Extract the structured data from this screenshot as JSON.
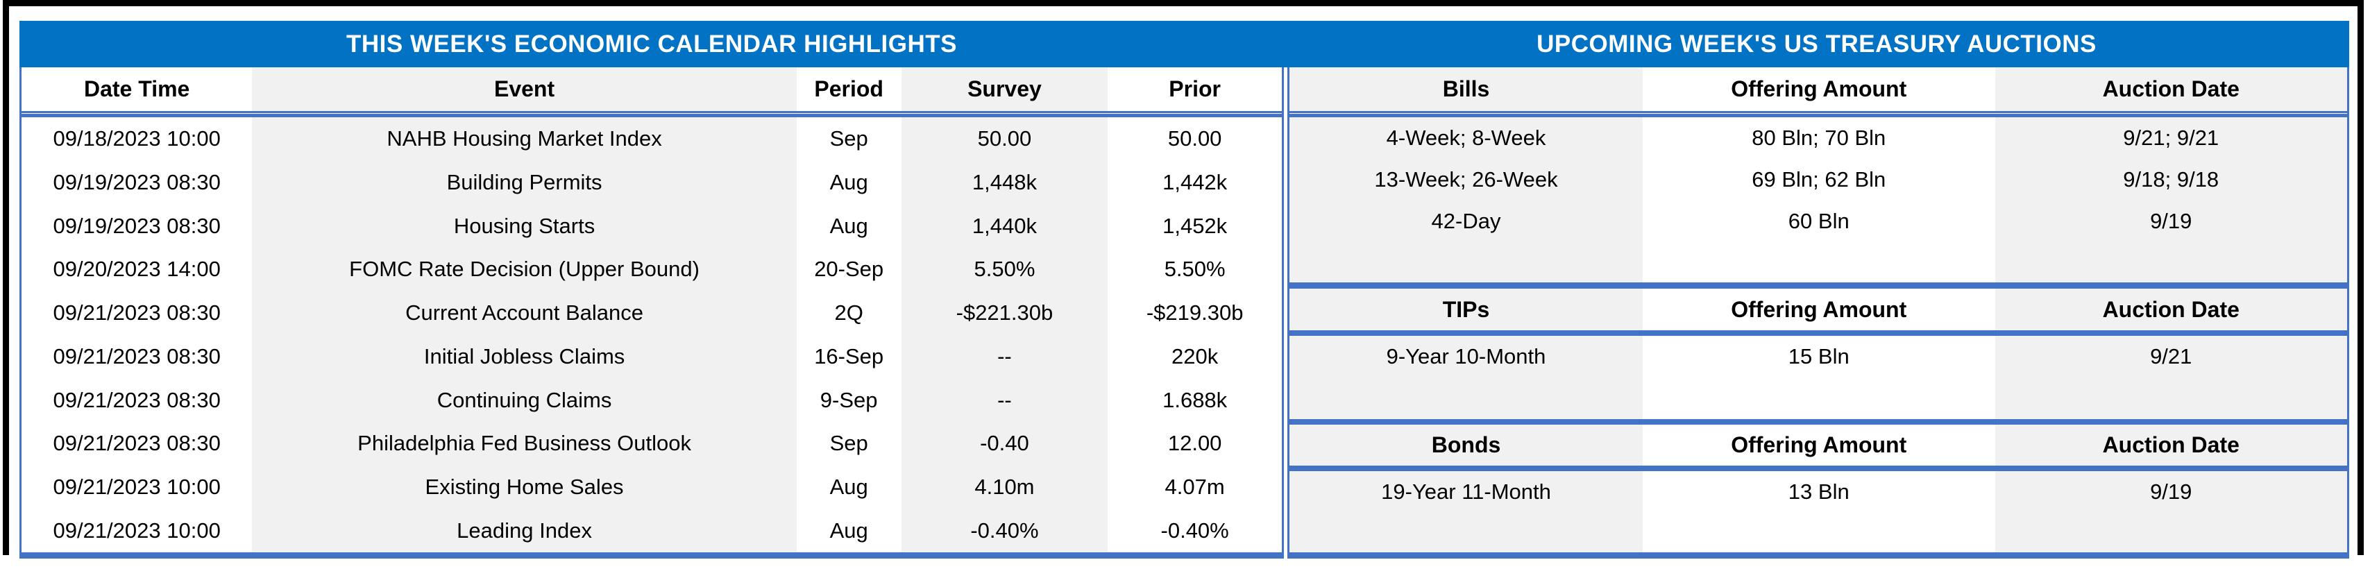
{
  "colors": {
    "band_blue": "#0272C4",
    "border_blue": "#4472C4",
    "cell_gray": "#F1F1F1",
    "frame_black": "#000000"
  },
  "calendar": {
    "title": "THIS WEEK'S ECONOMIC CALENDAR HIGHLIGHTS",
    "columns": [
      "Date Time",
      "Event",
      "Period",
      "Survey",
      "Prior"
    ],
    "rows": [
      [
        "09/18/2023 10:00",
        "NAHB Housing Market Index",
        "Sep",
        "50.00",
        "50.00"
      ],
      [
        "09/19/2023 08:30",
        "Building Permits",
        "Aug",
        "1,448k",
        "1,442k"
      ],
      [
        "09/19/2023 08:30",
        "Housing Starts",
        "Aug",
        "1,440k",
        "1,452k"
      ],
      [
        "09/20/2023 14:00",
        "FOMC Rate Decision (Upper Bound)",
        "20-Sep",
        "5.50%",
        "5.50%"
      ],
      [
        "09/21/2023 08:30",
        "Current Account Balance",
        "2Q",
        "-$221.30b",
        "-$219.30b"
      ],
      [
        "09/21/2023 08:30",
        "Initial Jobless Claims",
        "16-Sep",
        "--",
        "220k"
      ],
      [
        "09/21/2023 08:30",
        "Continuing Claims",
        "9-Sep",
        "--",
        "1.688k"
      ],
      [
        "09/21/2023 08:30",
        "Philadelphia Fed Business Outlook",
        "Sep",
        "-0.40",
        "12.00"
      ],
      [
        "09/21/2023 10:00",
        "Existing Home Sales",
        "Aug",
        "4.10m",
        "4.07m"
      ],
      [
        "09/21/2023 10:00",
        "Leading Index",
        "Aug",
        "-0.40%",
        "-0.40%"
      ]
    ]
  },
  "auctions": {
    "title": "UPCOMING WEEK'S US TREASURY AUCTIONS",
    "bills": {
      "columns": [
        "Bills",
        "Offering Amount",
        "Auction Date"
      ],
      "rows": [
        [
          "4-Week; 8-Week",
          "80 Bln; 70 Bln",
          "9/21; 9/21"
        ],
        [
          "13-Week; 26-Week",
          "69 Bln; 62 Bln",
          "9/18; 9/18"
        ],
        [
          "42-Day",
          "60 Bln",
          "9/19"
        ]
      ]
    },
    "tips": {
      "columns": [
        "TIPs",
        "Offering Amount",
        "Auction Date"
      ],
      "rows": [
        [
          "9-Year 10-Month",
          "15 Bln",
          "9/21"
        ]
      ]
    },
    "bonds": {
      "columns": [
        "Bonds",
        "Offering Amount",
        "Auction Date"
      ],
      "rows": [
        [
          "19-Year 11-Month",
          "13 Bln",
          "9/19"
        ]
      ]
    }
  }
}
